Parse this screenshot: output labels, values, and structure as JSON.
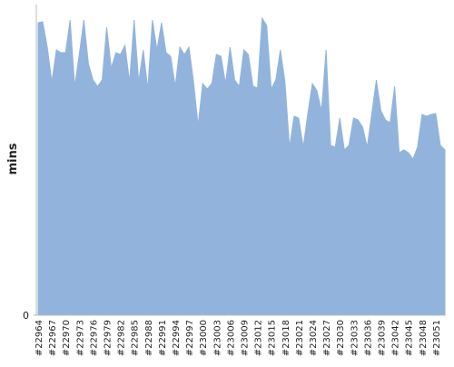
{
  "chart_data": {
    "type": "area",
    "y_label": "mins",
    "color": "#92b4dc",
    "ylim": [
      0,
      342
    ],
    "yticks": [
      0
    ],
    "categories": [
      "#22964",
      null,
      null,
      "#22967",
      null,
      null,
      "#22970",
      null,
      null,
      "#22973",
      null,
      null,
      "#22976",
      null,
      null,
      "#22979",
      null,
      null,
      "#22982",
      null,
      null,
      "#22985",
      null,
      null,
      "#22988",
      null,
      null,
      "#22991",
      null,
      null,
      "#22994",
      null,
      null,
      "#22997",
      null,
      null,
      "#23000",
      null,
      null,
      "#23003",
      null,
      null,
      "#23006",
      null,
      null,
      "#23009",
      null,
      null,
      "#23012",
      null,
      null,
      "#23015",
      null,
      null,
      "#23018",
      null,
      null,
      "#23021",
      null,
      null,
      "#23024",
      null,
      null,
      "#23027",
      null,
      null,
      "#23030",
      null,
      null,
      "#23033",
      null,
      null,
      "#23036",
      null,
      null,
      "#23039",
      null,
      null,
      "#23042",
      null,
      null,
      "#23045",
      null,
      null,
      "#23048",
      null,
      null,
      "#23051",
      null,
      null
    ],
    "values": [
      322,
      323,
      295,
      257,
      292,
      289,
      289,
      325,
      252,
      287,
      325,
      277,
      259,
      252,
      259,
      317,
      272,
      289,
      287,
      297,
      257,
      325,
      257,
      292,
      249,
      325,
      292,
      322,
      289,
      285,
      252,
      295,
      287,
      295,
      257,
      209,
      255,
      249,
      255,
      287,
      285,
      255,
      295,
      259,
      252,
      292,
      287,
      252,
      250,
      327,
      319,
      249,
      259,
      292,
      257,
      185,
      219,
      217,
      185,
      222,
      255,
      247,
      225,
      292,
      187,
      185,
      217,
      182,
      187,
      217,
      215,
      207,
      185,
      222,
      259,
      225,
      215,
      212,
      252,
      179,
      182,
      179,
      172,
      185,
      221,
      219,
      221,
      222,
      187,
      182
    ]
  }
}
